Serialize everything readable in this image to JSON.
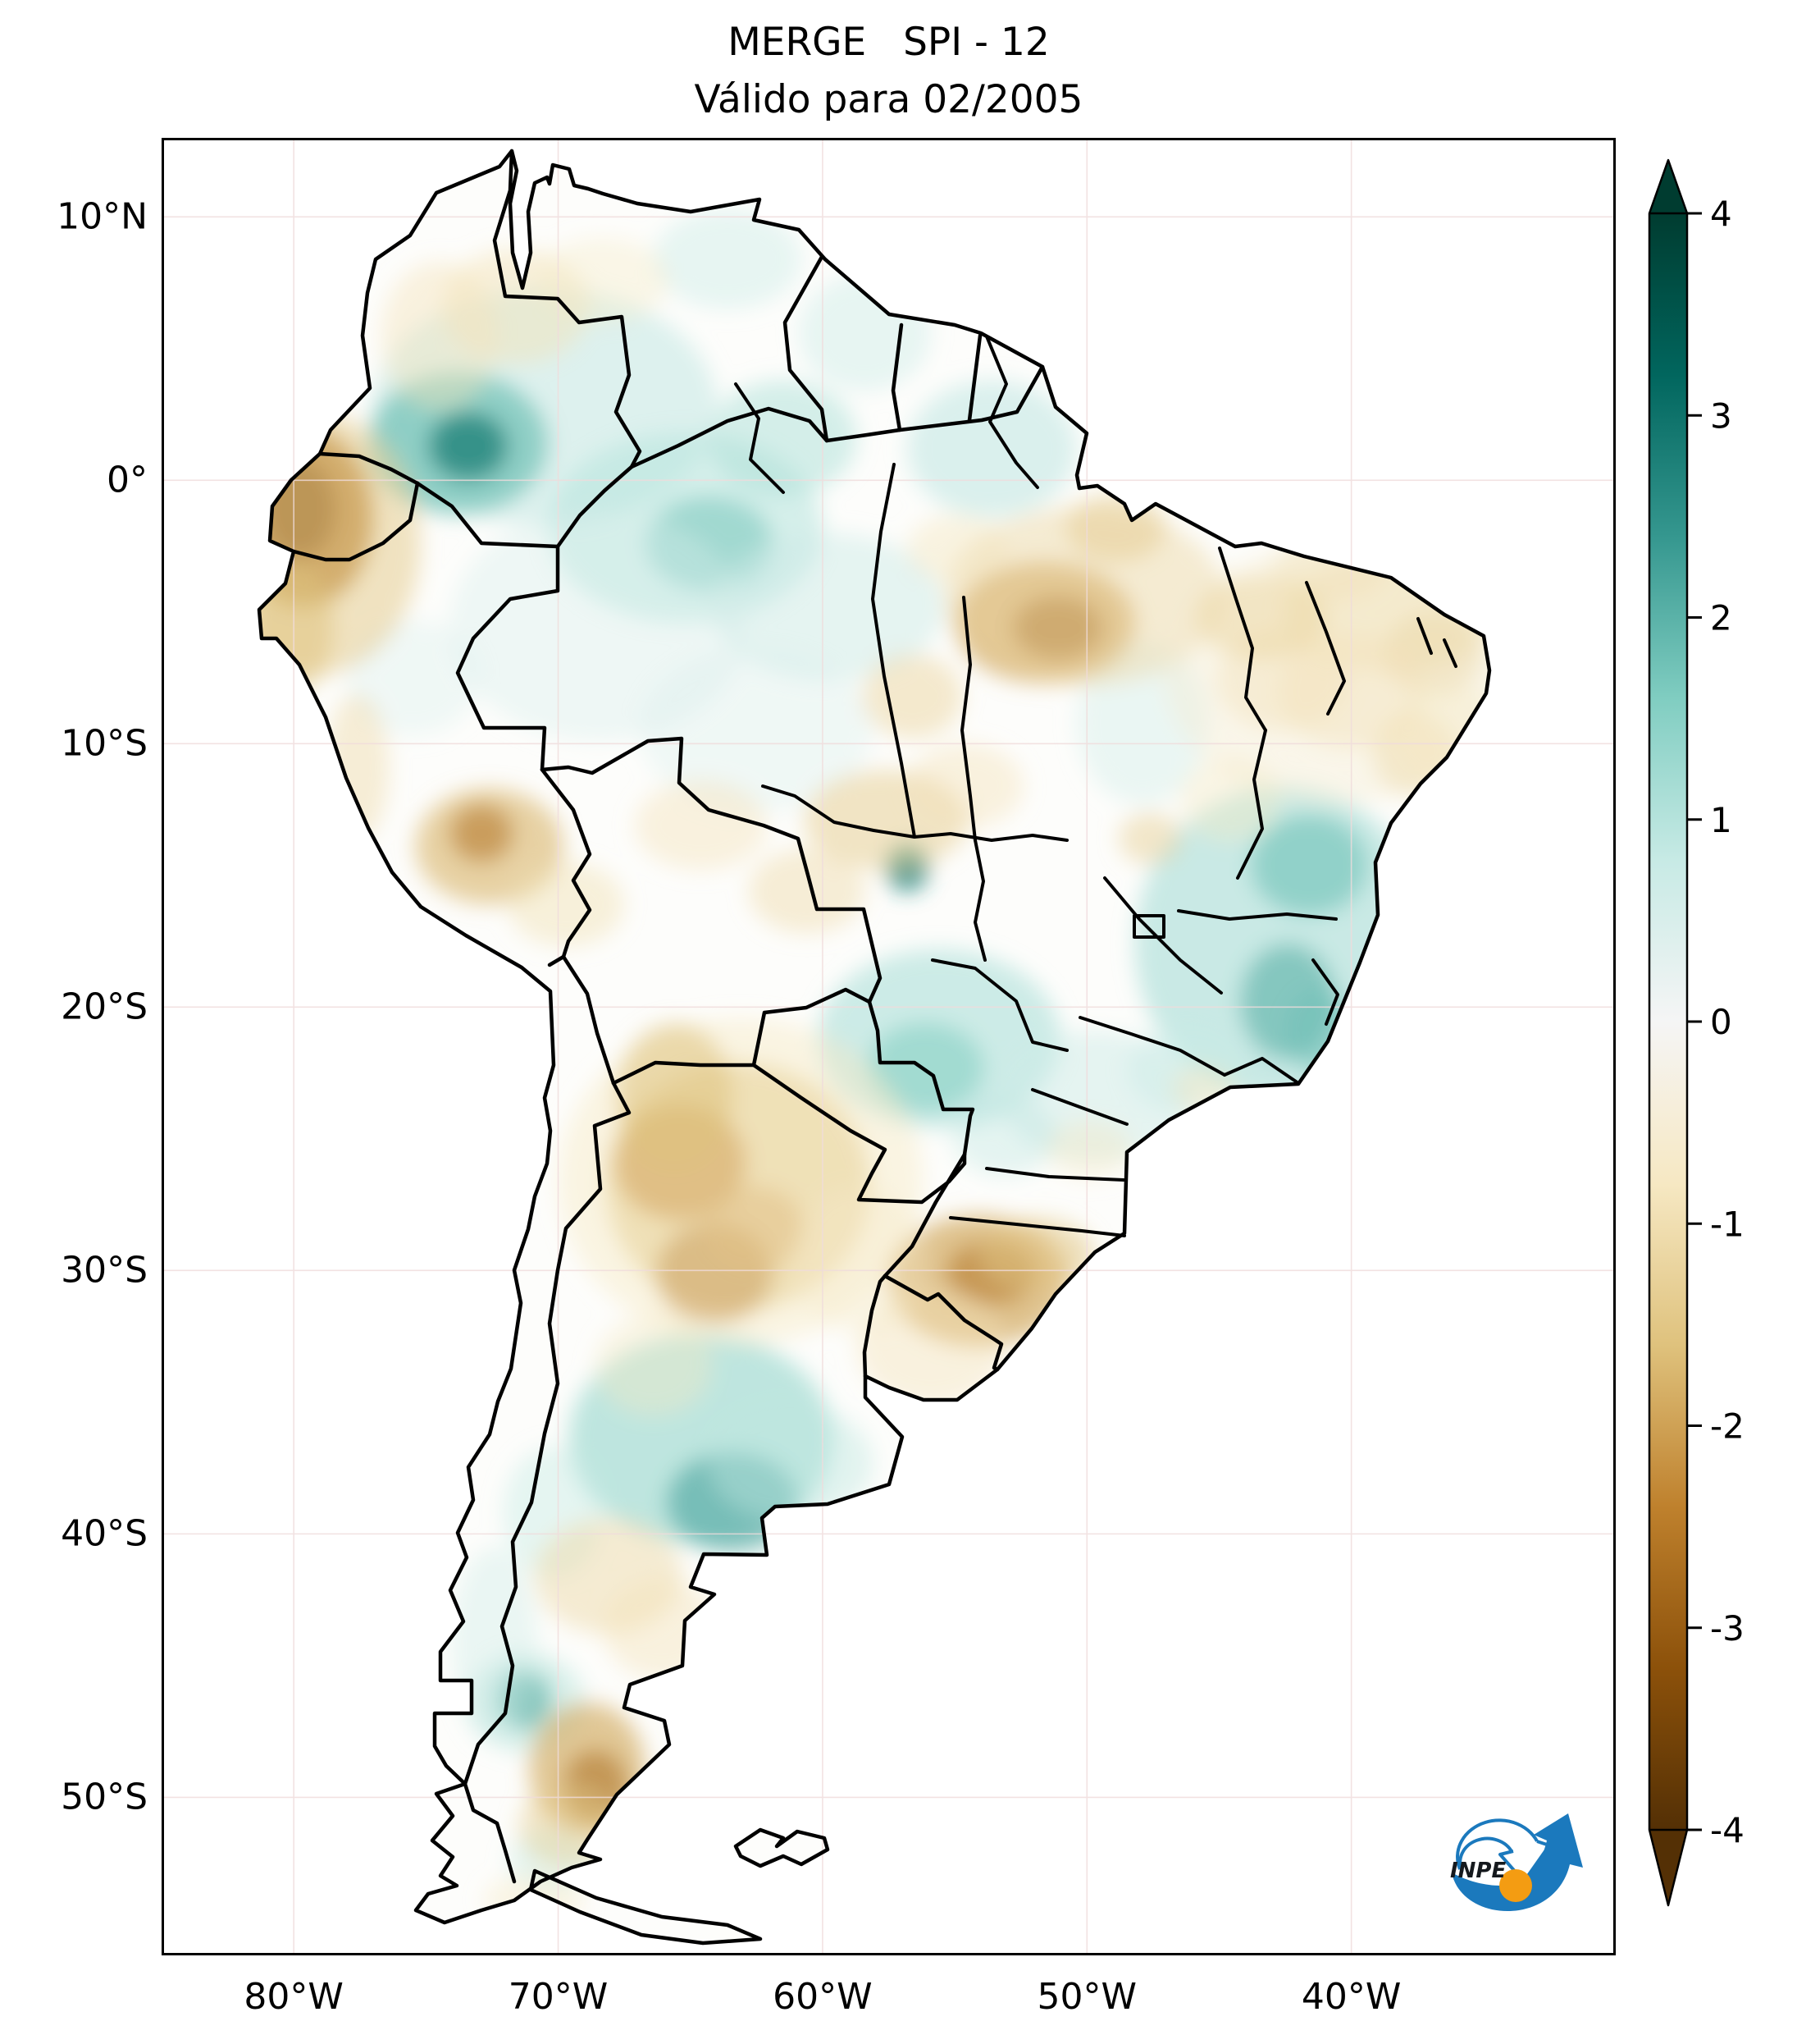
{
  "figure": {
    "title": "MERGE   SPI - 12",
    "subtitle": "Válido para 02/2005"
  },
  "axes": {
    "lat_ticks": [
      {
        "label": "10°N",
        "deg": 10
      },
      {
        "label": "0°",
        "deg": 0
      },
      {
        "label": "10°S",
        "deg": -10
      },
      {
        "label": "20°S",
        "deg": -20
      },
      {
        "label": "30°S",
        "deg": -30
      },
      {
        "label": "40°S",
        "deg": -40
      },
      {
        "label": "50°S",
        "deg": -50
      }
    ],
    "lon_ticks": [
      {
        "label": "80°W",
        "deg": -80
      },
      {
        "label": "70°W",
        "deg": -70
      },
      {
        "label": "60°W",
        "deg": -60
      },
      {
        "label": "50°W",
        "deg": -50
      },
      {
        "label": "40°W",
        "deg": -40
      }
    ]
  },
  "colorbar": {
    "tick_labels": [
      "4",
      "3",
      "2",
      "1",
      "0",
      "-1",
      "-2",
      "-3",
      "-4"
    ],
    "tick_values": [
      4,
      3,
      2,
      1,
      0,
      -1,
      -2,
      -3,
      -4
    ],
    "vmin": -4,
    "vmax": 4,
    "colormap": [
      {
        "v": -4.0,
        "c": "#543005"
      },
      {
        "v": -3.2,
        "c": "#8c510a"
      },
      {
        "v": -2.4,
        "c": "#bf812d"
      },
      {
        "v": -1.6,
        "c": "#dfc27d"
      },
      {
        "v": -0.8,
        "c": "#f6e8c3"
      },
      {
        "v": 0.0,
        "c": "#f5f5f5"
      },
      {
        "v": 0.8,
        "c": "#c7eae5"
      },
      {
        "v": 1.6,
        "c": "#80cdc1"
      },
      {
        "v": 2.4,
        "c": "#35978f"
      },
      {
        "v": 3.2,
        "c": "#01665e"
      },
      {
        "v": 4.0,
        "c": "#003c30"
      }
    ]
  },
  "logo": {
    "text": "INPE",
    "blue": "#1b79bd",
    "orange": "#f49c12"
  },
  "chart_data": {
    "type": "heatmap",
    "title": "MERGE   SPI - 12",
    "subtitle": "Válido para 02/2005",
    "variable": "SPI-12 (12-month Standardized Precipitation Index, MERGE precipitation)",
    "region": "South America",
    "lon_range": [
      -85,
      -30
    ],
    "lat_range": [
      -56,
      13
    ],
    "value_range": [
      -4,
      4
    ],
    "legend_position": "right colorbar with arrow extensions",
    "grid": "faint 10-degree graticule",
    "anomalies": {
      "columns": [
        "lon",
        "lat",
        "rx_deg",
        "ry_deg",
        "spi",
        "opacity"
      ],
      "points": [
        [
          -70.5,
          2.8,
          6.5,
          4.5,
          0.9,
          0.5
        ],
        [
          -73.8,
          1.4,
          3.4,
          2.7,
          1.8,
          0.7
        ],
        [
          -73.4,
          1.3,
          1.5,
          1.3,
          2.8,
          0.75
        ],
        [
          -65.2,
          -1.8,
          5.2,
          3.6,
          1.0,
          0.55
        ],
        [
          -64.3,
          -2.4,
          2.4,
          1.8,
          1.7,
          0.55
        ],
        [
          -61.5,
          1.6,
          2.8,
          2.2,
          1.1,
          0.5
        ],
        [
          -53.6,
          1.2,
          3.2,
          2.6,
          0.9,
          0.55
        ],
        [
          -59.8,
          -4.8,
          4.4,
          2.8,
          0.7,
          0.5
        ],
        [
          -68.5,
          -5.5,
          5.6,
          4.4,
          0.5,
          0.4
        ],
        [
          -62.5,
          -9.5,
          4.4,
          3.1,
          0.5,
          0.35
        ],
        [
          -75.5,
          -7.5,
          2.5,
          2.2,
          0.5,
          0.35
        ],
        [
          -56.8,
          -14.7,
          0.8,
          0.9,
          2.6,
          0.85
        ],
        [
          -55.6,
          -21.2,
          4.6,
          3.4,
          1.1,
          0.6
        ],
        [
          -56.1,
          -22.3,
          2.2,
          1.7,
          1.6,
          0.55
        ],
        [
          -42.6,
          -17.6,
          5.6,
          6.0,
          1.1,
          0.65
        ],
        [
          -41.6,
          -14.6,
          2.2,
          1.9,
          1.8,
          0.6
        ],
        [
          -42.4,
          -19.8,
          1.8,
          2.2,
          2.1,
          0.55
        ],
        [
          -41.2,
          -20.9,
          1.3,
          1.6,
          1.8,
          0.5
        ],
        [
          -49.6,
          -23.4,
          3.7,
          2.5,
          0.7,
          0.5
        ],
        [
          -64.6,
          -36.4,
          5.0,
          4.0,
          1.3,
          0.65
        ],
        [
          -63.4,
          -38.8,
          2.5,
          1.9,
          2.2,
          0.6
        ],
        [
          -61.2,
          -37.3,
          3.1,
          2.2,
          0.9,
          0.45
        ],
        [
          -71.3,
          -46.3,
          1.0,
          1.1,
          2.4,
          0.8
        ],
        [
          -71.2,
          -46.4,
          2.2,
          1.9,
          1.1,
          0.45
        ],
        [
          -70.2,
          -39.2,
          1.9,
          2.5,
          0.8,
          0.45
        ],
        [
          -72.4,
          -44.2,
          1.6,
          3.7,
          0.7,
          0.4
        ],
        [
          -70.3,
          -52.4,
          1.6,
          1.2,
          0.8,
          0.45
        ],
        [
          -63.6,
          8.4,
          2.8,
          1.9,
          0.7,
          0.45
        ],
        [
          -58.4,
          5.6,
          2.5,
          2.2,
          0.7,
          0.45
        ],
        [
          -47.9,
          -9.2,
          2.5,
          3.1,
          0.6,
          0.45
        ],
        [
          -46.3,
          -22.4,
          2.2,
          1.6,
          0.8,
          0.4
        ],
        [
          -53.1,
          -24.9,
          2.0,
          1.5,
          0.9,
          0.4
        ],
        [
          -79.6,
          -1.4,
          2.6,
          3.4,
          -2.6,
          0.85
        ],
        [
          -79.8,
          -1.1,
          1.4,
          1.9,
          -3.4,
          0.8
        ],
        [
          -79.2,
          -2.4,
          4.0,
          5.0,
          -1.4,
          0.55
        ],
        [
          -80.1,
          -5.6,
          1.6,
          2.5,
          -1.6,
          0.55
        ],
        [
          -77.6,
          -10.9,
          1.2,
          2.8,
          -1.1,
          0.45
        ],
        [
          -72.6,
          -13.9,
          2.8,
          2.2,
          -1.7,
          0.65
        ],
        [
          -72.9,
          -13.4,
          1.2,
          1.1,
          -2.6,
          0.55
        ],
        [
          -69.7,
          -16.1,
          2.2,
          1.6,
          -1.0,
          0.45
        ],
        [
          -74.5,
          5.5,
          2.2,
          2.8,
          -0.9,
          0.45
        ],
        [
          -71.6,
          6.6,
          2.8,
          2.2,
          -0.9,
          0.5
        ],
        [
          -68.3,
          7.6,
          2.5,
          1.6,
          -0.7,
          0.4
        ],
        [
          -51.6,
          -5.4,
          3.4,
          2.3,
          -2.0,
          0.75
        ],
        [
          -51.1,
          -5.6,
          1.7,
          1.2,
          -3.0,
          0.65
        ],
        [
          -50.1,
          -4.4,
          5.3,
          3.4,
          -1.1,
          0.5
        ],
        [
          -56.6,
          -8.2,
          1.9,
          1.6,
          -1.3,
          0.45
        ],
        [
          -48.9,
          -1.8,
          1.9,
          1.3,
          -1.4,
          0.5
        ],
        [
          -54.9,
          -2.6,
          1.9,
          1.3,
          -0.9,
          0.4
        ],
        [
          -38.6,
          -5.1,
          4.0,
          2.2,
          -1.1,
          0.55
        ],
        [
          -36.9,
          -6.6,
          1.9,
          1.6,
          -1.5,
          0.45
        ],
        [
          -40.5,
          -7.3,
          6.6,
          5.0,
          -0.6,
          0.4
        ],
        [
          -42.6,
          -7.6,
          2.5,
          1.9,
          -0.9,
          0.45
        ],
        [
          -43.4,
          -5.2,
          2.5,
          1.6,
          -1.2,
          0.5
        ],
        [
          -40.8,
          -3.4,
          2.2,
          1.2,
          -1.0,
          0.4
        ],
        [
          -37.6,
          -10.4,
          1.6,
          1.6,
          -1.1,
          0.45
        ],
        [
          -36.2,
          -9.8,
          2.2,
          2.0,
          -0.8,
          0.4
        ],
        [
          -40.0,
          -8.0,
          2.8,
          2.2,
          -0.9,
          0.45
        ],
        [
          -44.6,
          -12.1,
          1.9,
          1.6,
          -0.8,
          0.4
        ],
        [
          -57.6,
          -12.9,
          3.1,
          1.9,
          -1.3,
          0.55
        ],
        [
          -54.6,
          -11.6,
          2.2,
          1.6,
          -0.9,
          0.45
        ],
        [
          -60.6,
          -15.6,
          2.2,
          1.6,
          -1.1,
          0.45
        ],
        [
          -64.6,
          -13.1,
          2.5,
          1.7,
          -0.9,
          0.45
        ],
        [
          -47.6,
          -13.6,
          1.2,
          1.0,
          -1.4,
          0.45
        ],
        [
          -63.2,
          -26.8,
          5.0,
          4.7,
          -1.5,
          0.65
        ],
        [
          -65.4,
          -25.9,
          2.5,
          2.2,
          -2.4,
          0.7
        ],
        [
          -64.1,
          -30.1,
          2.2,
          1.9,
          -2.6,
          0.65
        ],
        [
          -62.6,
          -28.4,
          1.9,
          1.6,
          -2.0,
          0.55
        ],
        [
          -63.1,
          -26.6,
          6.9,
          6.2,
          -0.8,
          0.45
        ],
        [
          -65.6,
          -23.4,
          2.2,
          2.8,
          -1.6,
          0.55
        ],
        [
          -54.1,
          -30.4,
          3.4,
          2.5,
          -1.9,
          0.7
        ],
        [
          -53.6,
          -30.1,
          1.7,
          1.2,
          -2.6,
          0.55
        ],
        [
          -51.9,
          -29.4,
          2.2,
          1.4,
          -1.5,
          0.55
        ],
        [
          -55.9,
          -32.9,
          2.8,
          2.2,
          -0.9,
          0.45
        ],
        [
          -58.6,
          -29.6,
          2.5,
          2.8,
          -0.7,
          0.35
        ],
        [
          -68.1,
          -41.6,
          2.8,
          2.2,
          -1.1,
          0.5
        ],
        [
          -66.1,
          -43.6,
          2.2,
          1.9,
          -0.9,
          0.45
        ],
        [
          -68.9,
          -48.9,
          2.2,
          2.5,
          -1.9,
          0.65
        ],
        [
          -68.6,
          -49.6,
          1.2,
          1.4,
          -2.7,
          0.55
        ],
        [
          -69.6,
          -51.1,
          1.9,
          1.6,
          -1.4,
          0.45
        ],
        [
          -45.6,
          -23.1,
          1.2,
          0.9,
          -0.9,
          0.4
        ],
        [
          -49.9,
          -25.4,
          1.6,
          1.1,
          -0.8,
          0.4
        ],
        [
          -66.4,
          -33.6,
          2.2,
          1.9,
          -0.8,
          0.4
        ],
        [
          -70.9,
          -53.9,
          1.9,
          1.0,
          -0.8,
          0.4
        ]
      ]
    }
  }
}
